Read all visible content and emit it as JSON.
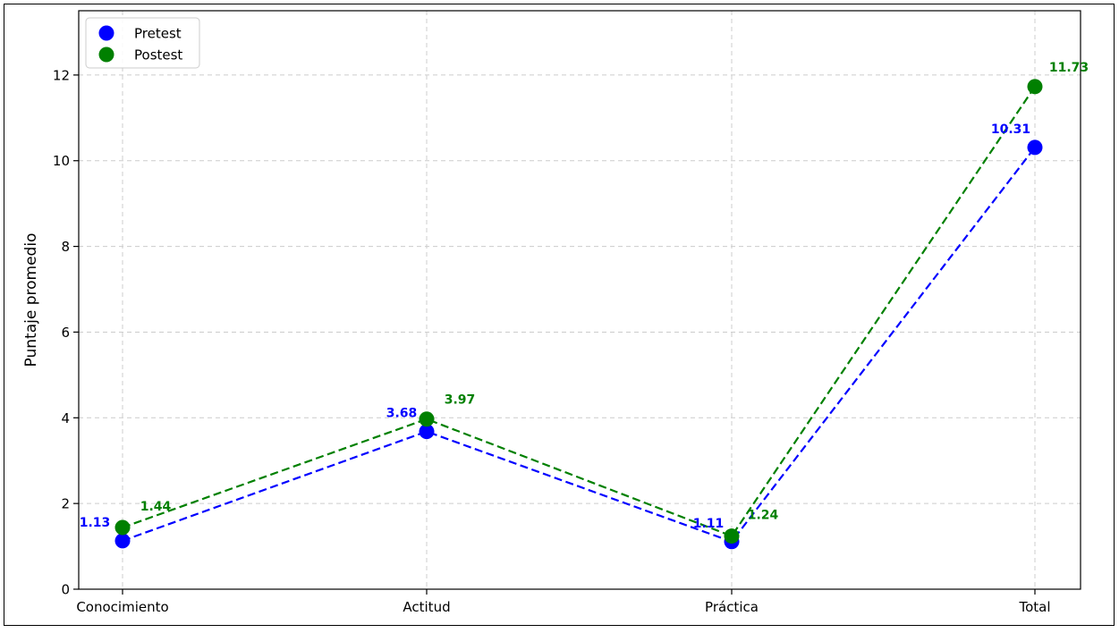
{
  "chart_data": {
    "type": "line",
    "categories": [
      "Conocimiento",
      "Actitud",
      "Práctica",
      "Total"
    ],
    "title": "",
    "xlabel": "",
    "ylabel": "Puntaje promedio",
    "ylim": [
      0,
      13.5
    ],
    "yticks": [
      "0",
      "2",
      "4",
      "6",
      "8",
      "10",
      "12"
    ],
    "grid": true,
    "legend_position": "top-left",
    "series": [
      {
        "name": "Pretest",
        "color": "#0000ff",
        "line_style": "dashed",
        "marker": "circle",
        "values": [
          1.13,
          3.68,
          1.11,
          10.31
        ],
        "labels": [
          "1.13",
          "3.68",
          "1.11",
          "10.31"
        ]
      },
      {
        "name": "Postest",
        "color": "#008000",
        "line_style": "dashed",
        "marker": "circle",
        "values": [
          1.44,
          3.97,
          1.24,
          11.73
        ],
        "labels": [
          "1.44",
          "3.97",
          "1.24",
          "11.73"
        ]
      }
    ]
  }
}
